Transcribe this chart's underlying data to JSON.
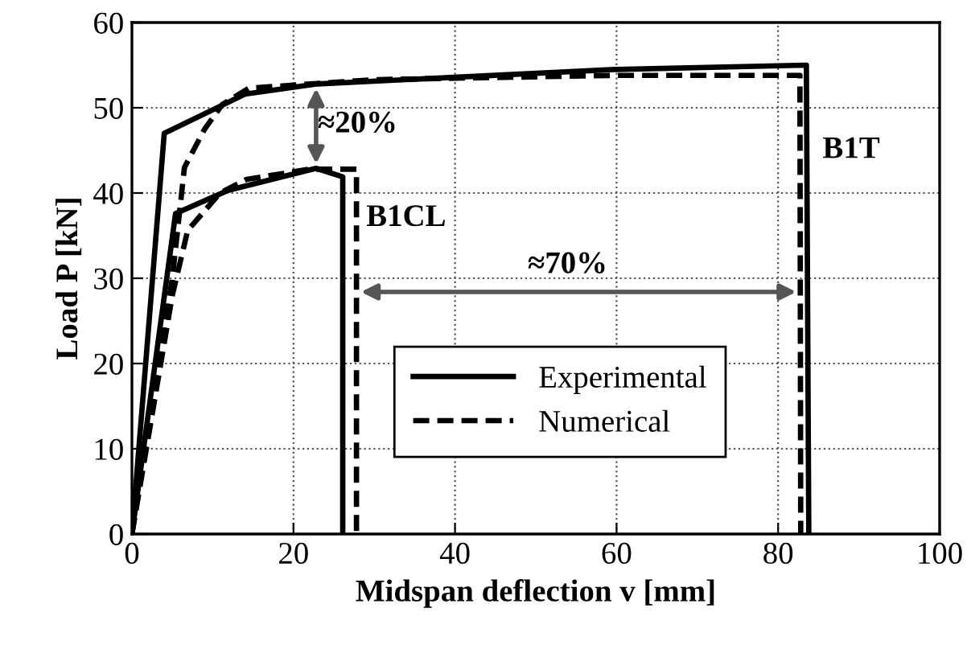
{
  "chart_data": {
    "type": "line",
    "xlabel": "Midspan deflection v [mm]",
    "ylabel": "Load P [kN]",
    "xlim": [
      0,
      100
    ],
    "ylim": [
      0,
      60
    ],
    "xticks": [
      0,
      20,
      40,
      60,
      80,
      100
    ],
    "yticks": [
      0,
      10,
      20,
      30,
      40,
      50,
      60
    ],
    "grid": true,
    "legend": "bottom",
    "marker": "none",
    "series": [
      {
        "name": "Experimental",
        "color": "#000000",
        "line_style": "solid",
        "x": [
          0,
          4,
          14,
          23,
          60,
          83.5,
          83.8
        ],
        "values": [
          0,
          47,
          51.6,
          52.8,
          54.5,
          55,
          0
        ]
      },
      {
        "name": "Numerical",
        "color": "#000000",
        "line_style": "dashed",
        "x": [
          0,
          5,
          6.5,
          9,
          11.2,
          14.5,
          30,
          60,
          82.7,
          82.8
        ],
        "values": [
          0,
          30,
          43,
          47.5,
          50.4,
          52.3,
          53.3,
          53.8,
          53.8,
          0
        ]
      },
      {
        "color": "#000000",
        "line_style": "solid",
        "x": [
          0,
          5.4,
          11.9,
          22.8,
          26.1,
          26.1
        ],
        "values": [
          0,
          37.6,
          40.3,
          42.9,
          41.9,
          0
        ]
      },
      {
        "color": "#000000",
        "line_style": "dashed",
        "x": [
          0,
          5,
          6.9,
          10.9,
          14.2,
          22,
          27.8,
          27.8
        ],
        "values": [
          0,
          28,
          35.6,
          40,
          41.6,
          42.8,
          42.8,
          0
        ]
      }
    ],
    "annotations": [
      "≈20%",
      "≈70%",
      "B1CL",
      "B1T"
    ]
  }
}
